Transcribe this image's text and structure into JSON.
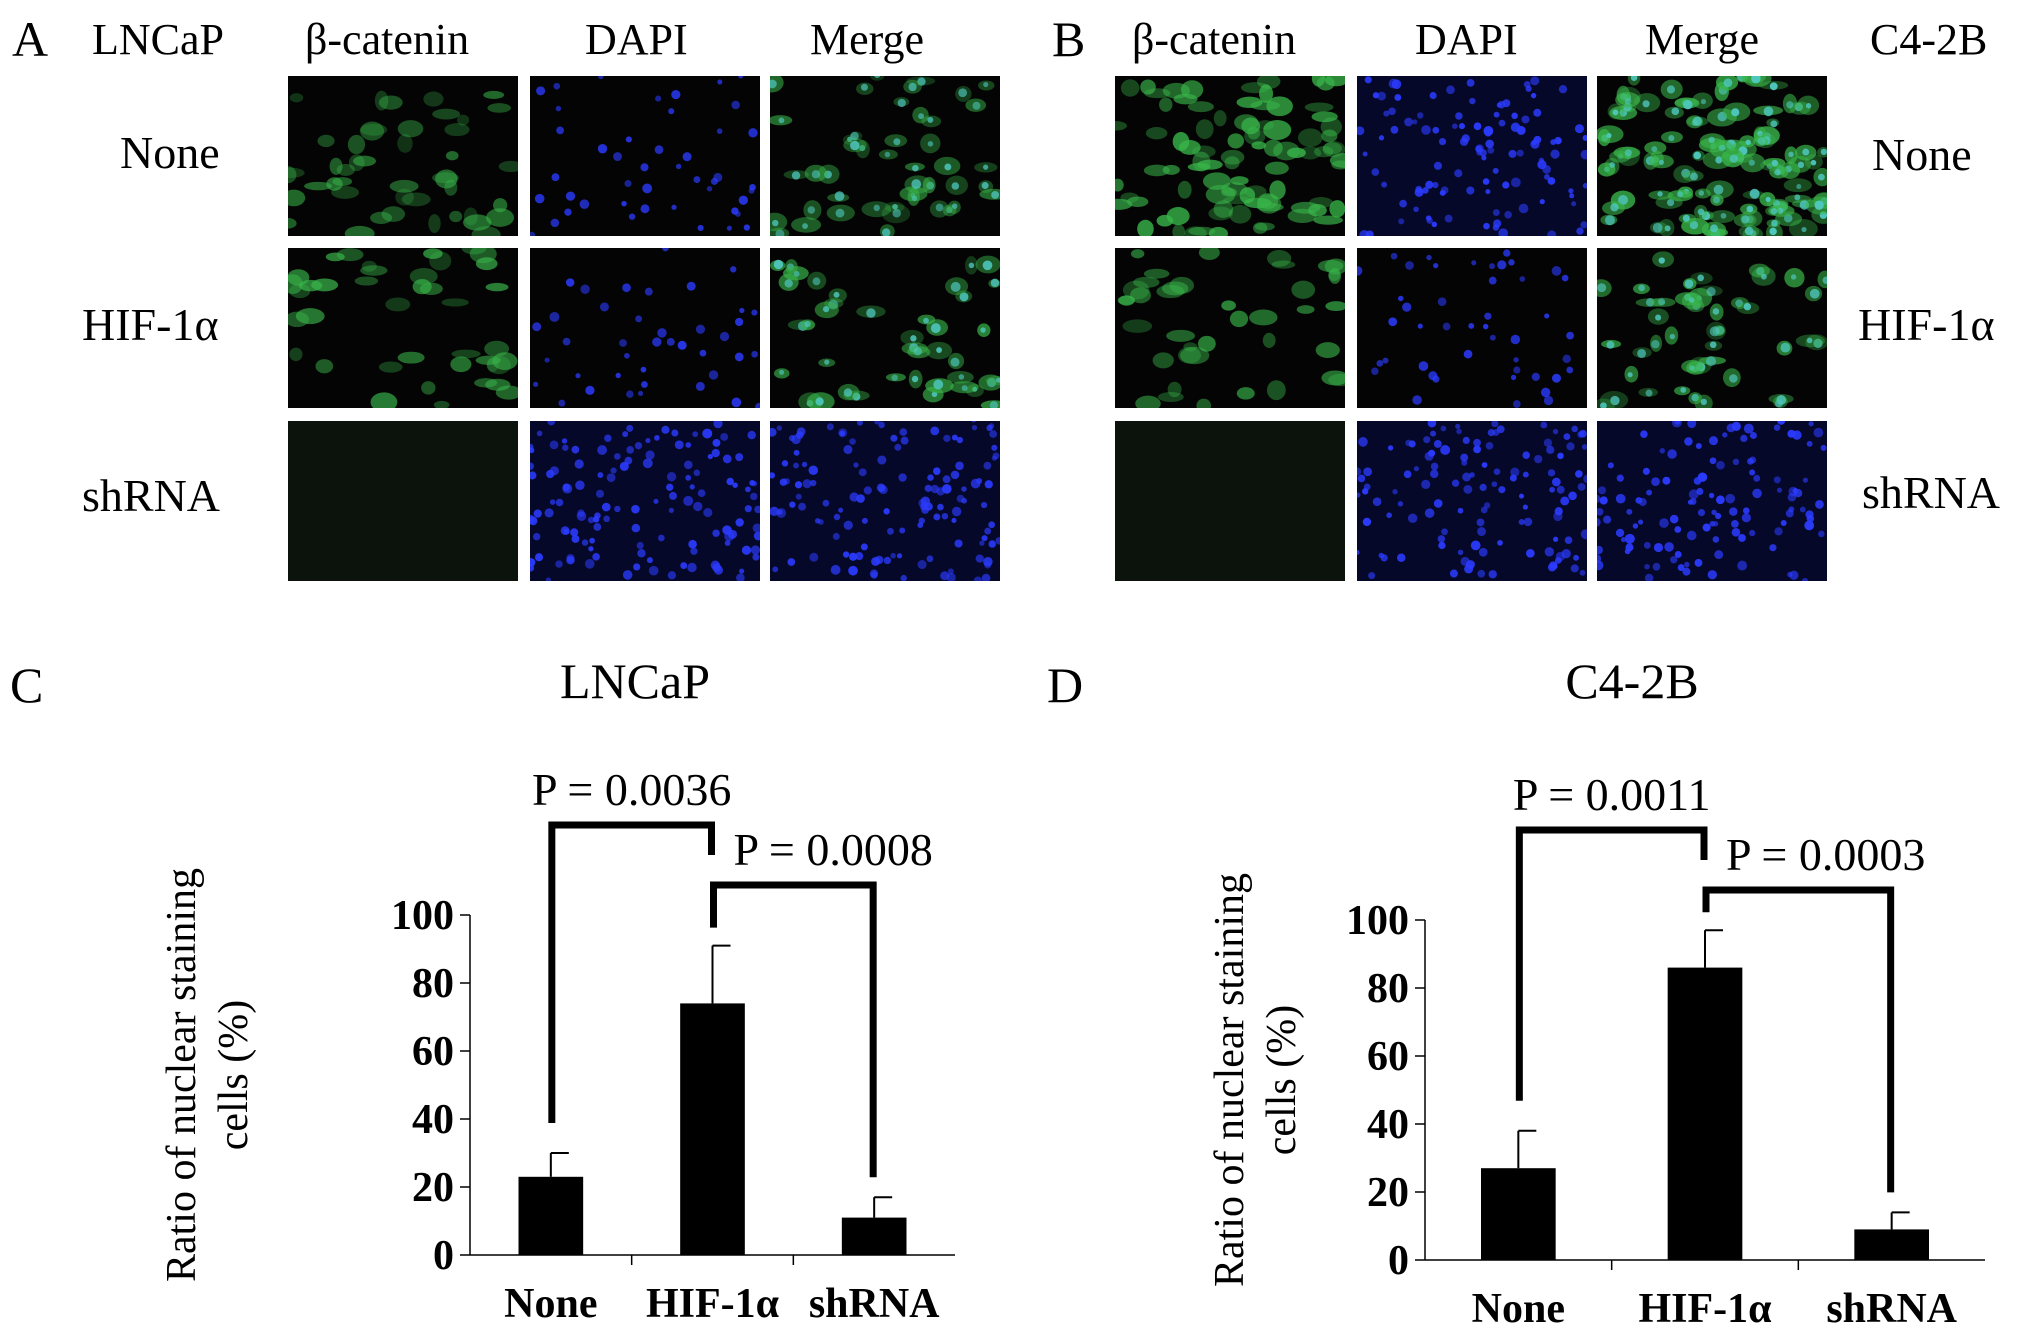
{
  "panels": {
    "A": {
      "letter": "A",
      "cell_line": "LNCaP",
      "columns": [
        "β-catenin",
        "DAPI",
        "Merge"
      ],
      "rows": [
        "None",
        "HIF-1α",
        "shRNA"
      ]
    },
    "B": {
      "letter": "B",
      "cell_line": "C4-2B",
      "columns": [
        "β-catenin",
        "DAPI",
        "Merge"
      ],
      "rows": [
        "None",
        "HIF-1α",
        "shRNA"
      ]
    },
    "C": {
      "letter": "C"
    },
    "D": {
      "letter": "D"
    }
  },
  "colors": {
    "green_stain": "#39b54a",
    "blue_stain": "#2b3bff",
    "cyan_merge": "#4fc8c0",
    "bar": "#000000"
  },
  "chart_data": [
    {
      "type": "bar",
      "title": "LNCaP",
      "ylabel": "Ratio of nuclear staining cells (%)",
      "ylabel_lines": [
        "Ratio of nuclear staining",
        "cells (%)"
      ],
      "categories": [
        "None",
        "HIF-1α",
        "shRNA"
      ],
      "values": [
        23,
        74,
        11
      ],
      "errors": [
        7,
        17,
        6
      ],
      "ylim": [
        0,
        100
      ],
      "yticks": [
        0,
        20,
        40,
        60,
        80,
        100
      ],
      "significance": [
        {
          "from": 0,
          "to": 1,
          "label": "P = 0.0036"
        },
        {
          "from": 1,
          "to": 2,
          "label": "P = 0.0008"
        }
      ]
    },
    {
      "type": "bar",
      "title": "C4-2B",
      "ylabel": "Ratio of nuclear staining cells (%)",
      "ylabel_lines": [
        "Ratio of nuclear staining",
        "cells (%)"
      ],
      "categories": [
        "None",
        "HIF-1α",
        "shRNA"
      ],
      "values": [
        27,
        86,
        9
      ],
      "errors": [
        11,
        11,
        5
      ],
      "ylim": [
        0,
        100
      ],
      "yticks": [
        0,
        20,
        40,
        60,
        80,
        100
      ],
      "significance": [
        {
          "from": 0,
          "to": 1,
          "label": "P = 0.0011"
        },
        {
          "from": 1,
          "to": 2,
          "label": "P = 0.0003"
        }
      ]
    }
  ]
}
